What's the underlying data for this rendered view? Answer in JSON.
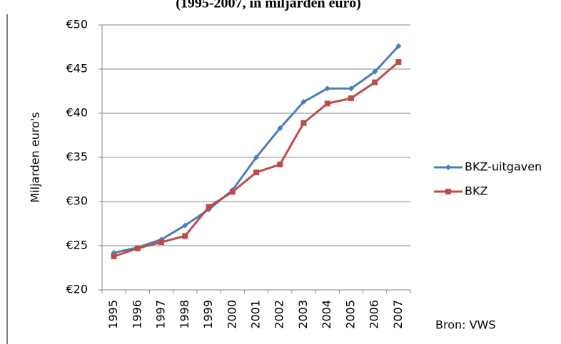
{
  "chart_data": {
    "type": "line",
    "title": "(1995-2007, in miljarden euro)",
    "y_label": "Miljarden euro's",
    "source": "Bron: VWS",
    "categories": [
      "1995",
      "1996",
      "1997",
      "1998",
      "1999",
      "2000",
      "2001",
      "2002",
      "2003",
      "2004",
      "2005",
      "2006",
      "2007"
    ],
    "series": [
      {
        "name": "BKZ-uitgaven",
        "color": "#4a7ebb",
        "marker": "diamond",
        "values": [
          24.2,
          24.8,
          25.7,
          27.3,
          29.1,
          31.3,
          35.0,
          38.3,
          41.3,
          42.8,
          42.8,
          44.7,
          47.6
        ]
      },
      {
        "name": "BKZ",
        "color": "#be4b48",
        "marker": "square",
        "values": [
          23.8,
          24.7,
          25.4,
          26.1,
          29.4,
          31.1,
          33.3,
          34.2,
          38.9,
          41.1,
          41.7,
          43.5,
          45.8
        ]
      }
    ],
    "ylim": [
      20,
      50
    ],
    "yticks": [
      {
        "value": 20,
        "label": "€20"
      },
      {
        "value": 25,
        "label": "€25"
      },
      {
        "value": 30,
        "label": "€30"
      },
      {
        "value": 35,
        "label": "€35"
      },
      {
        "value": 40,
        "label": "€40"
      },
      {
        "value": 45,
        "label": "€45"
      },
      {
        "value": 50,
        "label": "€50"
      }
    ],
    "grid": true,
    "legend": "right"
  }
}
